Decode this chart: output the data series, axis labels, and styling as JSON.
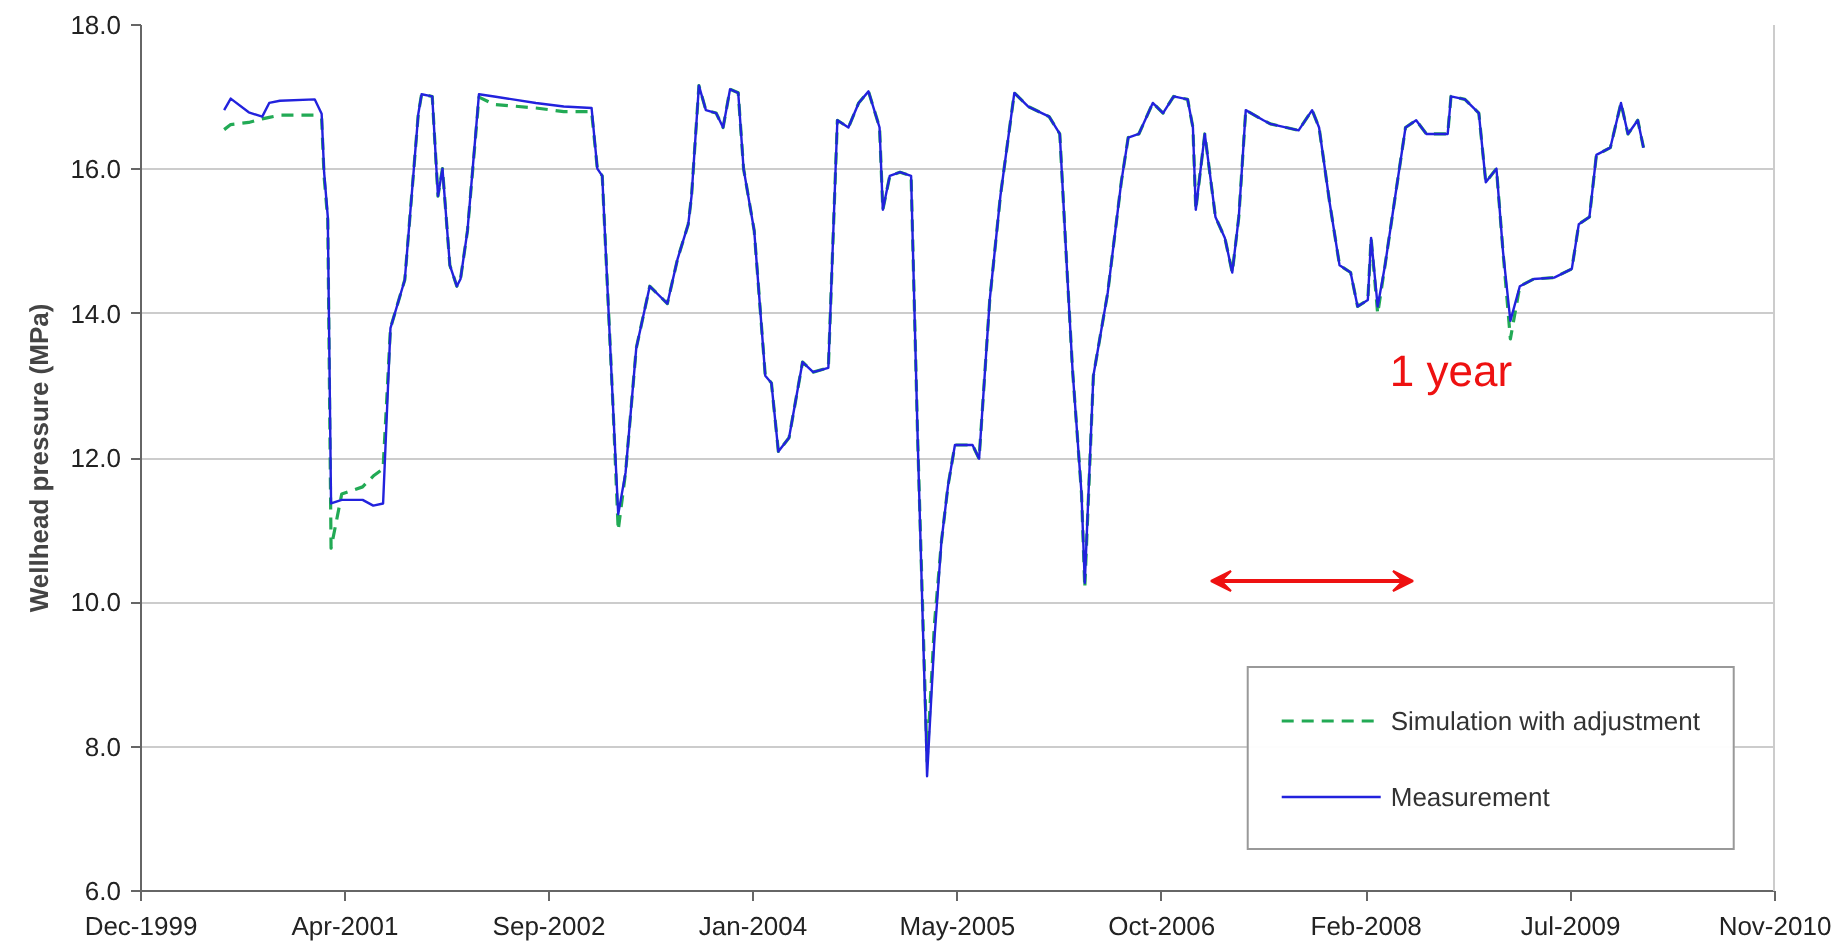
{
  "chart_data": {
    "type": "line",
    "ylabel": "Wellhead pressure (MPa)",
    "annotations": [
      "1 year"
    ],
    "x": [
      "2000-07-05",
      "2000-07-21",
      "2000-09-03",
      "2000-10-06",
      "2000-10-23",
      "2000-11-18",
      "2001-02-11",
      "2001-02-28",
      "2001-03-06",
      "2001-03-15",
      "2001-03-23",
      "2001-04-18",
      "2001-06-08",
      "2001-07-04",
      "2001-07-28",
      "2001-08-15",
      "2001-09-19",
      "2001-10-22",
      "2001-10-30",
      "2001-11-25",
      "2001-12-09",
      "2001-12-20",
      "2002-01-07",
      "2002-01-24",
      "2002-02-02",
      "2002-02-19",
      "2002-03-19",
      "2002-04-25",
      "2002-08-05",
      "2002-10-12",
      "2002-12-19",
      "2003-01-02",
      "2003-01-14",
      "2003-02-09",
      "2003-02-22",
      "2003-03-12",
      "2003-04-07",
      "2003-05-10",
      "2003-06-22",
      "2003-07-17",
      "2003-08-12",
      "2003-08-20",
      "2003-09-07",
      "2003-09-24",
      "2003-10-19",
      "2003-11-05",
      "2003-11-22",
      "2003-12-12",
      "2003-12-25",
      "2004-01-20",
      "2004-02-16",
      "2004-03-02",
      "2004-03-19",
      "2004-04-14",
      "2004-05-17",
      "2004-06-12",
      "2004-07-19",
      "2004-08-10",
      "2004-09-06",
      "2004-10-01",
      "2004-10-25",
      "2004-11-21",
      "2004-11-29",
      "2004-12-16",
      "2005-01-10",
      "2005-02-06",
      "2005-02-22",
      "2005-03-17",
      "2005-04-04",
      "2005-04-21",
      "2005-05-07",
      "2005-05-24",
      "2005-07-06",
      "2005-07-22",
      "2005-08-17",
      "2005-09-12",
      "2005-10-16",
      "2005-11-19",
      "2006-01-09",
      "2006-02-04",
      "2006-02-21",
      "2006-03-07",
      "2006-03-29",
      "2006-04-06",
      "2006-04-27",
      "2006-06-01",
      "2006-07-04",
      "2006-07-21",
      "2006-08-16",
      "2006-09-19",
      "2006-10-14",
      "2006-11-09",
      "2006-12-13",
      "2006-12-26",
      "2007-01-02",
      "2007-01-24",
      "2007-02-19",
      "2007-03-14",
      "2007-04-01",
      "2007-04-17",
      "2007-05-04",
      "2007-06-16",
      "2007-07-03",
      "2007-09-10",
      "2007-10-13",
      "2007-10-30",
      "2007-11-25",
      "2007-12-19",
      "2008-01-15",
      "2008-02-01",
      "2008-02-26",
      "2008-03-05",
      "2008-03-21",
      "2008-04-08",
      "2008-05-03",
      "2008-05-28",
      "2008-06-23",
      "2008-07-18",
      "2008-09-08",
      "2008-09-16",
      "2008-10-20",
      "2008-11-23",
      "2008-12-10",
      "2009-01-05",
      "2009-01-21",
      "2009-02-08",
      "2009-03-03",
      "2009-04-06",
      "2009-05-26",
      "2009-07-08",
      "2009-07-25",
      "2009-08-20",
      "2009-09-06",
      "2009-10-10",
      "2009-11-05",
      "2009-11-22",
      "2009-12-16",
      "2009-12-30"
    ],
    "series": [
      {
        "name": "Measurement",
        "color": "#2222dd",
        "line_style": "solid",
        "values": [
          16.82,
          16.98,
          16.79,
          16.73,
          16.92,
          16.95,
          16.97,
          16.77,
          15.96,
          15.34,
          11.37,
          11.42,
          11.42,
          11.34,
          11.37,
          13.8,
          14.47,
          16.77,
          17.04,
          17.01,
          15.63,
          16.01,
          14.67,
          14.38,
          14.48,
          15.15,
          17.04,
          17.01,
          16.92,
          16.87,
          16.85,
          16.01,
          15.91,
          12.75,
          11.22,
          11.8,
          13.52,
          14.38,
          14.14,
          14.76,
          15.24,
          15.63,
          17.16,
          16.82,
          16.78,
          16.58,
          17.11,
          17.06,
          16.01,
          15.15,
          13.14,
          13.04,
          12.09,
          12.28,
          13.33,
          13.19,
          13.25,
          16.68,
          16.58,
          16.92,
          17.08,
          16.58,
          15.44,
          15.91,
          15.96,
          15.91,
          12.28,
          7.59,
          9.5,
          10.84,
          11.61,
          12.18,
          12.18,
          11.99,
          14.19,
          15.63,
          17.06,
          16.87,
          16.73,
          16.49,
          14.67,
          13.23,
          11.51,
          10.27,
          13.14,
          14.29,
          15.82,
          16.44,
          16.49,
          16.92,
          16.78,
          17.01,
          16.97,
          16.58,
          15.44,
          16.49,
          15.34,
          15.05,
          14.57,
          15.34,
          16.82,
          16.68,
          16.63,
          16.54,
          16.82,
          16.58,
          15.53,
          14.67,
          14.57,
          14.1,
          14.19,
          15.05,
          14.1,
          14.67,
          15.63,
          16.58,
          16.68,
          16.49,
          16.49,
          17.01,
          16.97,
          16.78,
          15.82,
          16.01,
          14.86,
          13.9,
          14.38,
          14.48,
          14.5,
          14.62,
          15.24,
          15.34,
          16.2,
          16.3,
          16.92,
          16.49,
          16.68,
          16.3
        ]
      },
      {
        "name": "Simulation with adjustment",
        "color": "#22aa55",
        "line_style": "dashed",
        "values": [
          16.55,
          16.62,
          16.65,
          16.7,
          16.72,
          16.75,
          16.75,
          16.7,
          15.9,
          15.3,
          10.75,
          11.5,
          11.6,
          11.75,
          11.85,
          13.8,
          14.47,
          16.77,
          17.04,
          17.01,
          15.63,
          16.01,
          14.67,
          14.38,
          14.48,
          15.15,
          17.0,
          16.9,
          16.85,
          16.8,
          16.8,
          16.01,
          15.91,
          12.75,
          11.0,
          11.8,
          13.52,
          14.38,
          14.14,
          14.76,
          15.24,
          15.63,
          17.16,
          16.82,
          16.78,
          16.58,
          17.11,
          17.06,
          16.01,
          15.15,
          13.14,
          13.04,
          12.09,
          12.28,
          13.33,
          13.19,
          13.25,
          16.68,
          16.58,
          16.92,
          17.08,
          16.58,
          15.44,
          15.91,
          15.96,
          15.91,
          12.28,
          7.8,
          9.7,
          10.84,
          11.61,
          12.18,
          12.18,
          11.99,
          14.19,
          15.63,
          17.06,
          16.87,
          16.73,
          16.49,
          14.67,
          13.23,
          11.51,
          10.2,
          13.14,
          14.29,
          15.82,
          16.44,
          16.49,
          16.92,
          16.78,
          17.01,
          16.97,
          16.58,
          15.44,
          16.49,
          15.34,
          15.05,
          14.57,
          15.34,
          16.82,
          16.68,
          16.63,
          16.54,
          16.82,
          16.58,
          15.53,
          14.67,
          14.57,
          14.1,
          14.19,
          15.05,
          14.0,
          14.67,
          15.63,
          16.58,
          16.68,
          16.49,
          16.49,
          17.01,
          16.97,
          16.78,
          15.82,
          16.01,
          14.86,
          13.65,
          14.38,
          14.48,
          14.5,
          14.62,
          15.24,
          15.34,
          16.2,
          16.3,
          16.92,
          16.49,
          16.68,
          16.3
        ]
      }
    ],
    "xlim": [
      "1999-12-15",
      "2010-11-16"
    ],
    "xticks": [
      {
        "value": "1999-12-15",
        "label": "Dec-1999"
      },
      {
        "value": "2001-04-26",
        "label": "Apr-2001"
      },
      {
        "value": "2002-09-06",
        "label": "Sep-2002"
      },
      {
        "value": "2004-01-17",
        "label": "Jan-2004"
      },
      {
        "value": "2005-05-30",
        "label": "May-2005"
      },
      {
        "value": "2006-10-11",
        "label": "Oct-2006"
      },
      {
        "value": "2008-02-22",
        "label": "Feb-2008"
      },
      {
        "value": "2009-07-05",
        "label": "Jul-2009"
      },
      {
        "value": "2010-11-16",
        "label": "Nov-2010"
      }
    ],
    "ylim": [
      6,
      18
    ],
    "yticks": [
      {
        "value": 6,
        "label": "6.0"
      },
      {
        "value": 8,
        "label": "8.0"
      },
      {
        "value": 10,
        "label": "10.0"
      },
      {
        "value": 12,
        "label": "12.0"
      },
      {
        "value": 14,
        "label": "14.0"
      },
      {
        "value": 16,
        "label": "16.0"
      },
      {
        "value": 18,
        "label": "18.0"
      }
    ],
    "grid": "y",
    "legend": "bottom right",
    "marker": "none"
  }
}
